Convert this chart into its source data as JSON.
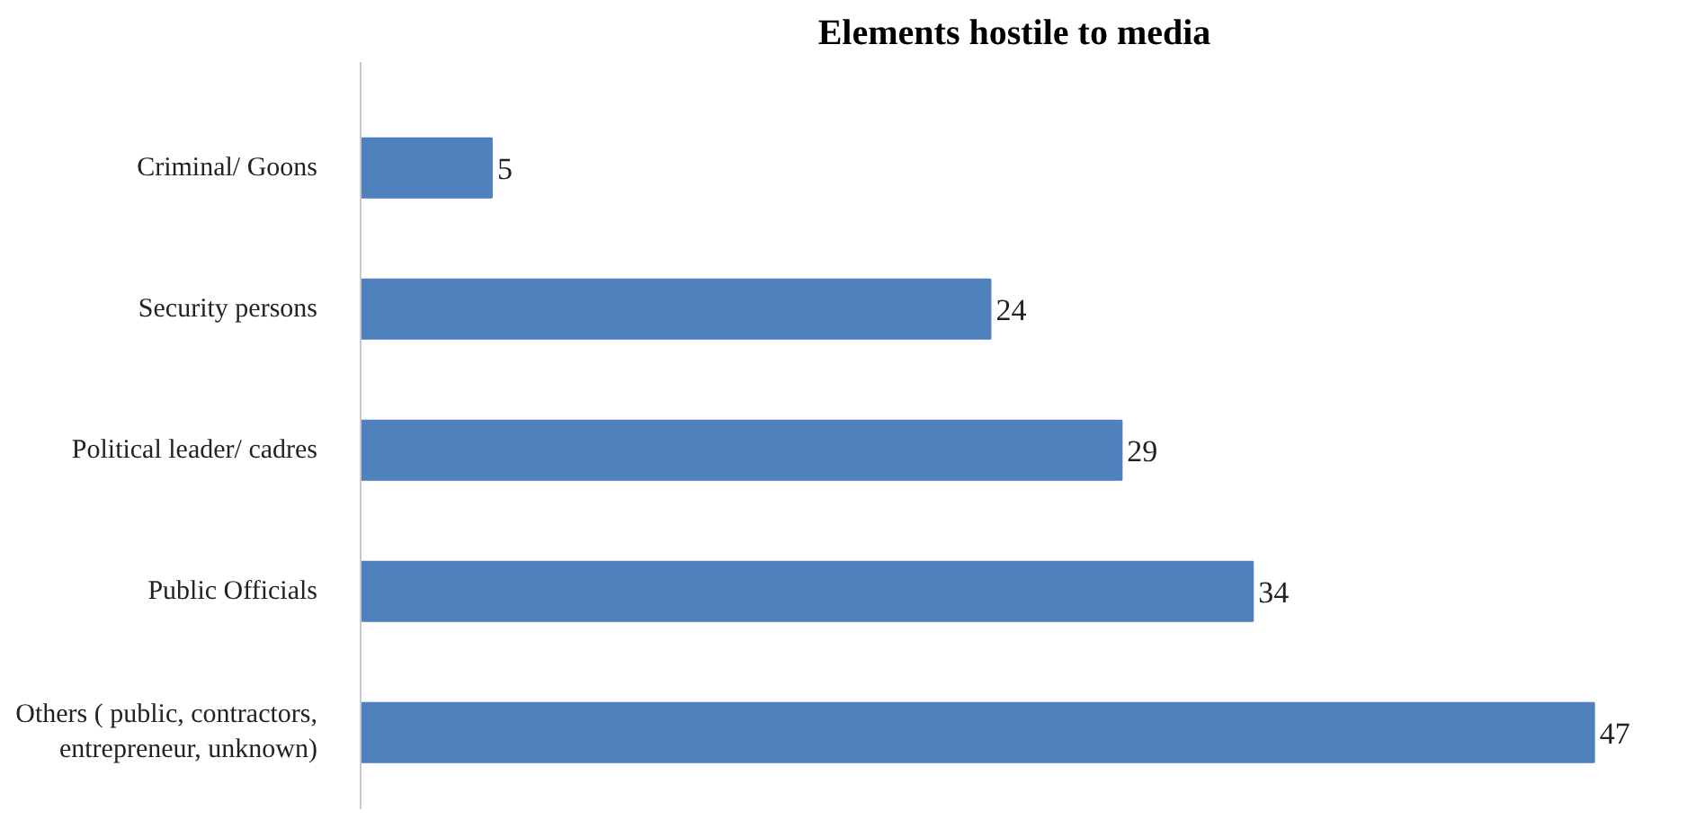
{
  "chart_data": {
    "type": "bar",
    "orientation": "horizontal",
    "title": "Elements hostile to media",
    "categories": [
      "Criminal/ Goons",
      "Security persons",
      "Political leader/ cadres",
      "Public Officials",
      "Others ( public, contractors,\nentrepreneur, unknown)"
    ],
    "values": [
      5,
      24,
      29,
      34,
      47
    ],
    "color": "#4f81bd",
    "data_labels": true,
    "grid": false
  }
}
